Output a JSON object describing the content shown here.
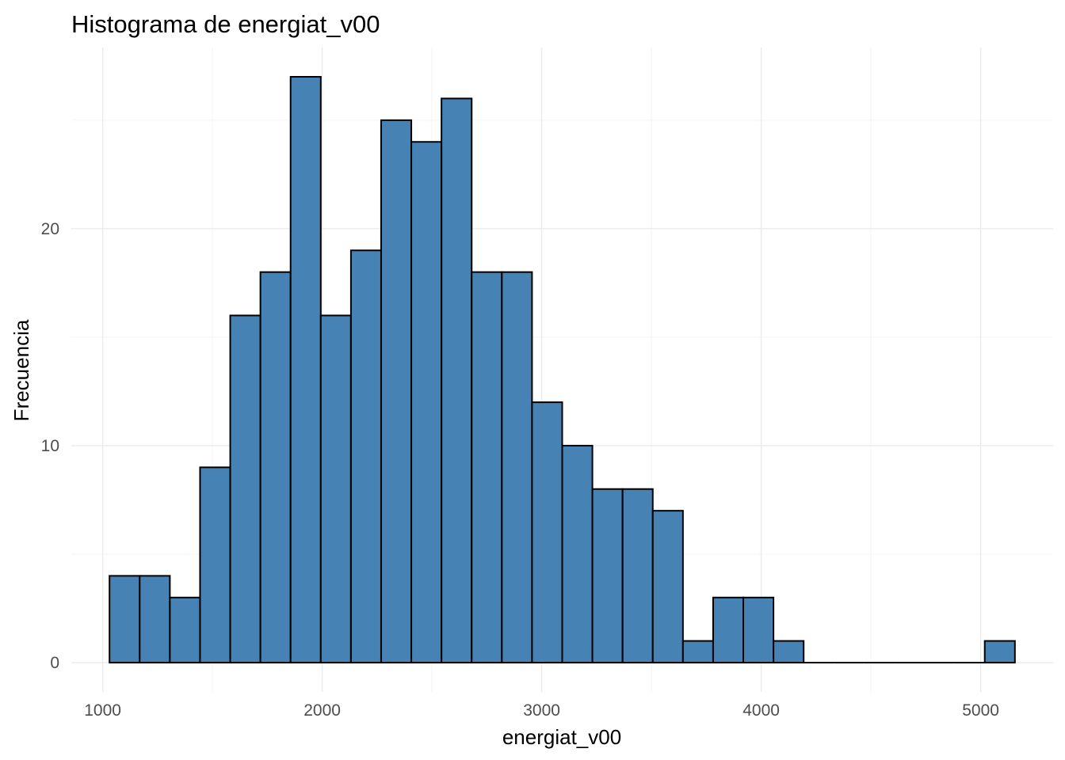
{
  "chart_data": {
    "type": "bar",
    "title": "Histograma de energiat_v00",
    "xlabel": "energiat_v00",
    "ylabel": "Frecuencia",
    "bin_width": 137.5,
    "bins": [
      {
        "x0": 1031,
        "x1": 1168.5,
        "count": 4
      },
      {
        "x0": 1168.5,
        "x1": 1306,
        "count": 4
      },
      {
        "x0": 1306,
        "x1": 1443.5,
        "count": 3
      },
      {
        "x0": 1443.5,
        "x1": 1581,
        "count": 9
      },
      {
        "x0": 1581,
        "x1": 1718.5,
        "count": 16
      },
      {
        "x0": 1718.5,
        "x1": 1856,
        "count": 18
      },
      {
        "x0": 1856,
        "x1": 1993.5,
        "count": 27
      },
      {
        "x0": 1993.5,
        "x1": 2131,
        "count": 16
      },
      {
        "x0": 2131,
        "x1": 2268.5,
        "count": 19
      },
      {
        "x0": 2268.5,
        "x1": 2406,
        "count": 25
      },
      {
        "x0": 2406,
        "x1": 2543.5,
        "count": 24
      },
      {
        "x0": 2543.5,
        "x1": 2681,
        "count": 26
      },
      {
        "x0": 2681,
        "x1": 2818.5,
        "count": 18
      },
      {
        "x0": 2818.5,
        "x1": 2956,
        "count": 18
      },
      {
        "x0": 2956,
        "x1": 3093.5,
        "count": 12
      },
      {
        "x0": 3093.5,
        "x1": 3231,
        "count": 10
      },
      {
        "x0": 3231,
        "x1": 3368.5,
        "count": 8
      },
      {
        "x0": 3368.5,
        "x1": 3506,
        "count": 8
      },
      {
        "x0": 3506,
        "x1": 3643.5,
        "count": 7
      },
      {
        "x0": 3643.5,
        "x1": 3781,
        "count": 1
      },
      {
        "x0": 3781,
        "x1": 3918.5,
        "count": 3
      },
      {
        "x0": 3918.5,
        "x1": 4056,
        "count": 3
      },
      {
        "x0": 4056,
        "x1": 4193.5,
        "count": 1
      },
      {
        "x0": 4193.5,
        "x1": 4331,
        "count": 0
      },
      {
        "x0": 4331,
        "x1": 4468.5,
        "count": 0
      },
      {
        "x0": 4468.5,
        "x1": 4606,
        "count": 0
      },
      {
        "x0": 4606,
        "x1": 4743.5,
        "count": 0
      },
      {
        "x0": 4743.5,
        "x1": 4881,
        "count": 0
      },
      {
        "x0": 4881,
        "x1": 5018.5,
        "count": 0
      },
      {
        "x0": 5018.5,
        "x1": 5156,
        "count": 1
      }
    ],
    "xlim": [
      857,
      5330
    ],
    "ylim": [
      -1.35,
      28.35
    ],
    "x_ticks": [
      1000,
      2000,
      3000,
      4000,
      5000
    ],
    "x_tick_labels": [
      "1000",
      "2000",
      "3000",
      "4000",
      "5000"
    ],
    "x_minor_ticks": [
      1500,
      2500,
      3500,
      4500
    ],
    "y_ticks": [
      0,
      10,
      20
    ],
    "y_tick_labels": [
      "0",
      "10",
      "20"
    ],
    "y_minor_ticks": [
      5,
      15,
      25
    ],
    "grid": true,
    "fill_color": "#4682B4",
    "outline_color": "#000000",
    "grid_color": "#EBEBEB"
  }
}
